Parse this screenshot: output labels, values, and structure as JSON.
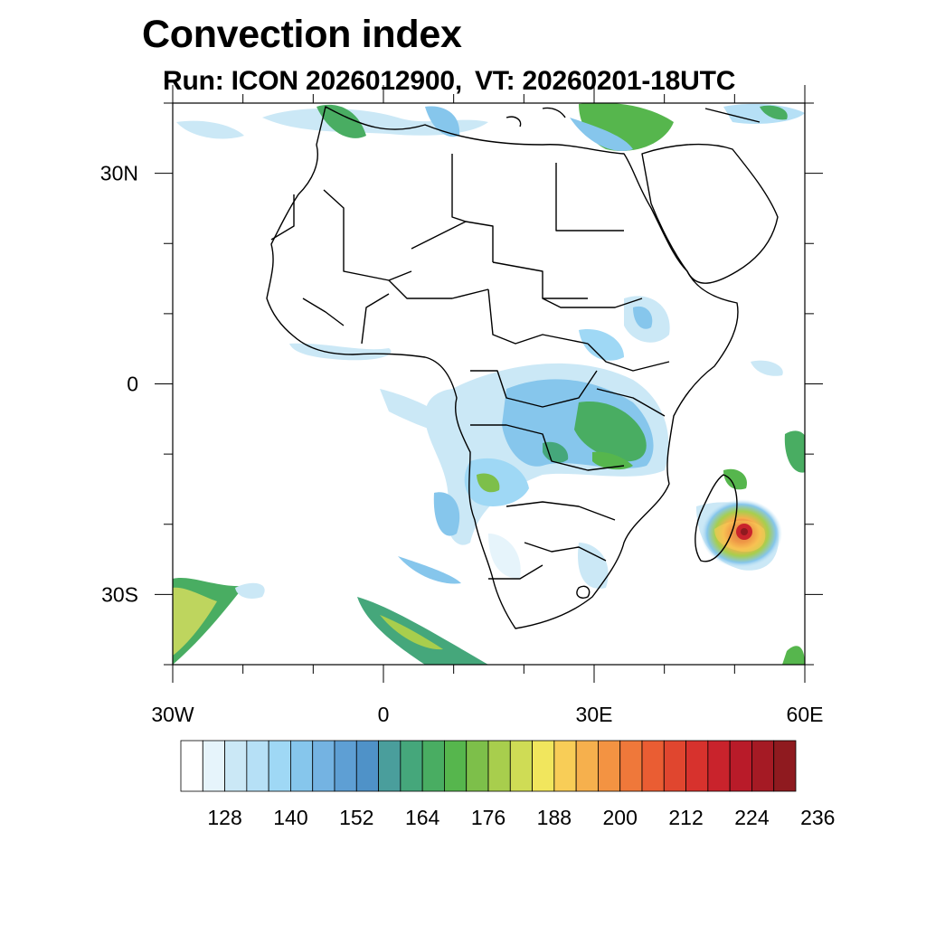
{
  "title": "Convection index",
  "subtitle": {
    "run": "Run: ICON 2026012900,",
    "valid_time": "VT: 20260201-18UTC"
  },
  "map": {
    "lat_range": [
      -40,
      40
    ],
    "lon_range": [
      -30,
      60
    ],
    "lat_labels": [
      {
        "lat": 30,
        "text": "30N"
      },
      {
        "lat": 0,
        "text": "0"
      },
      {
        "lat": -30,
        "text": "30S"
      }
    ],
    "lon_labels": [
      {
        "lon": -30,
        "text": "30W"
      },
      {
        "lon": 0,
        "text": "0"
      },
      {
        "lon": 30,
        "text": "30E"
      },
      {
        "lon": 60,
        "text": "60E"
      }
    ],
    "features": {
      "coastline_color": "#000000",
      "border_color": "#000000"
    }
  },
  "colorbar": {
    "labels": [
      "128",
      "140",
      "152",
      "164",
      "176",
      "188",
      "200",
      "212",
      "224",
      "236"
    ],
    "colors": [
      "#ffffff",
      "#e6f4fb",
      "#cbe8f6",
      "#b6e0f6",
      "#9fd8f5",
      "#86c6ec",
      "#74b3e2",
      "#5e9fd4",
      "#4f92c8",
      "#4a9e9c",
      "#45a77b",
      "#49ad62",
      "#56b64d",
      "#7dbf4a",
      "#a8ce4d",
      "#cfdc55",
      "#f1e65d",
      "#f8cd57",
      "#f6b04d",
      "#f39342",
      "#ef783a",
      "#ea5d33",
      "#e0462f",
      "#d7322d",
      "#c9232c",
      "#b91b29",
      "#a51a24",
      "#8f1a1f"
    ]
  }
}
